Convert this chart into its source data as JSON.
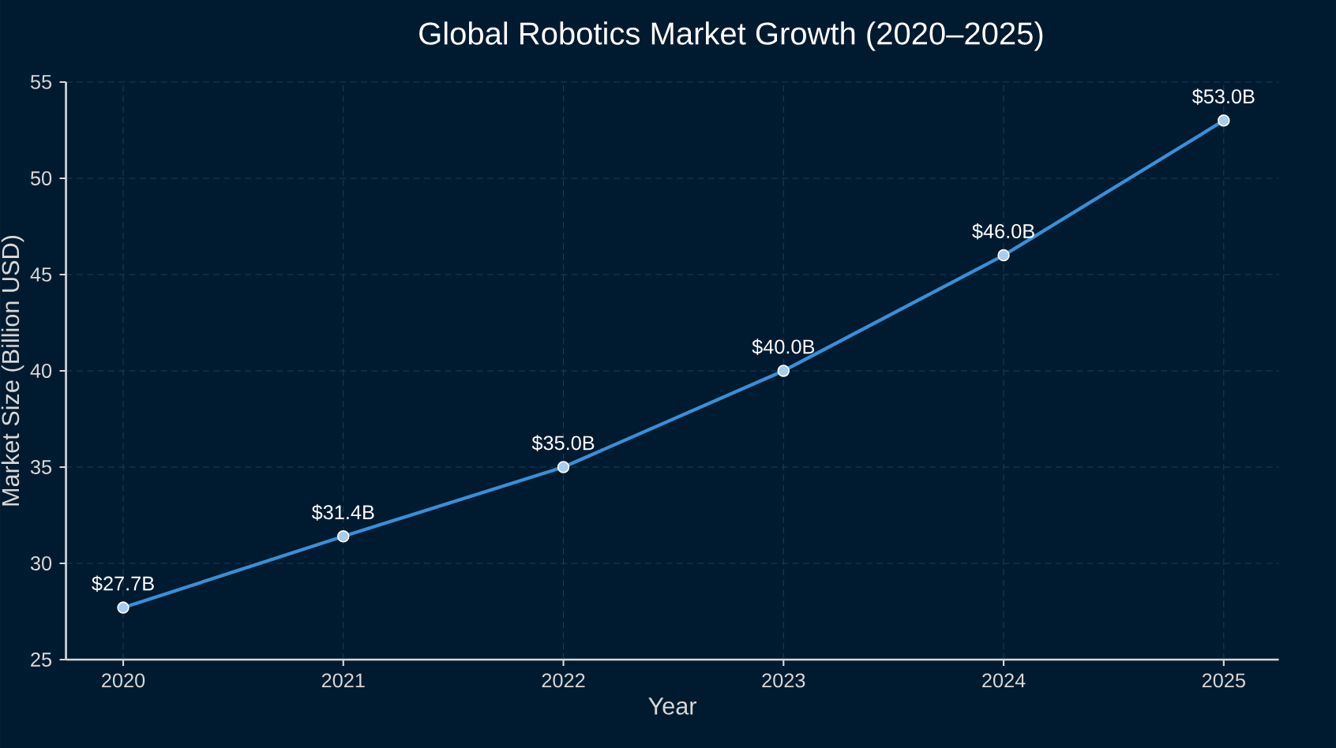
{
  "chart_data": {
    "type": "line",
    "title": "Global Robotics Market Growth (2020–2025)",
    "xlabel": "Year",
    "ylabel": "Market Size (Billion USD)",
    "categories": [
      "2020",
      "2021",
      "2022",
      "2023",
      "2024",
      "2025"
    ],
    "series": [
      {
        "color": "#3a8fd6",
        "values": [
          27.7,
          31.4,
          35.0,
          40.0,
          46.0,
          53.0
        ],
        "value_labels": [
          "$27.7B",
          "$31.4B",
          "$35.0B",
          "$40.0B",
          "$46.0B",
          "$53.0B"
        ]
      }
    ],
    "ylim": [
      25,
      55
    ],
    "yticks": [
      25,
      30,
      35,
      40,
      45,
      50,
      55
    ],
    "grid": true,
    "marker": "circle",
    "line_style": "solid"
  }
}
